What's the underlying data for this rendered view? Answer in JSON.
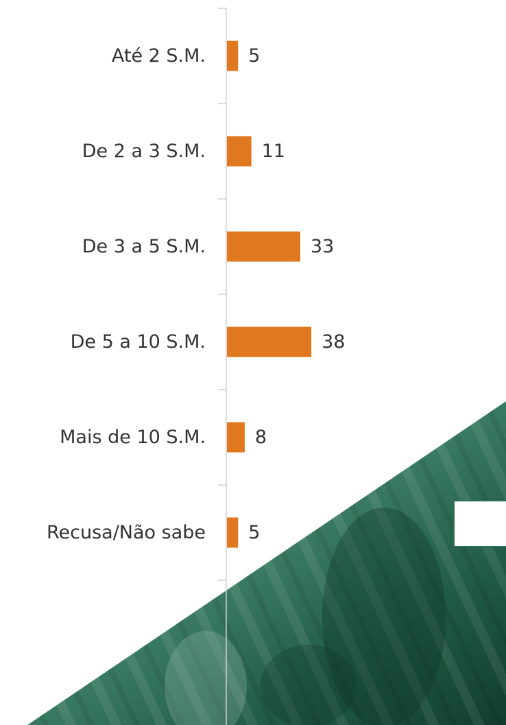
{
  "chart_data": {
    "type": "bar",
    "orientation": "horizontal",
    "categories": [
      "Até 2 S.M.",
      "De 2 a 3 S.M.",
      "De 3 a 5 S.M.",
      "De 5 a 10 S.M.",
      "Mais de 10 S.M.",
      "Recusa/Não sabe"
    ],
    "values": [
      5,
      11,
      33,
      38,
      8,
      5
    ],
    "color": "#e07820"
  }
}
